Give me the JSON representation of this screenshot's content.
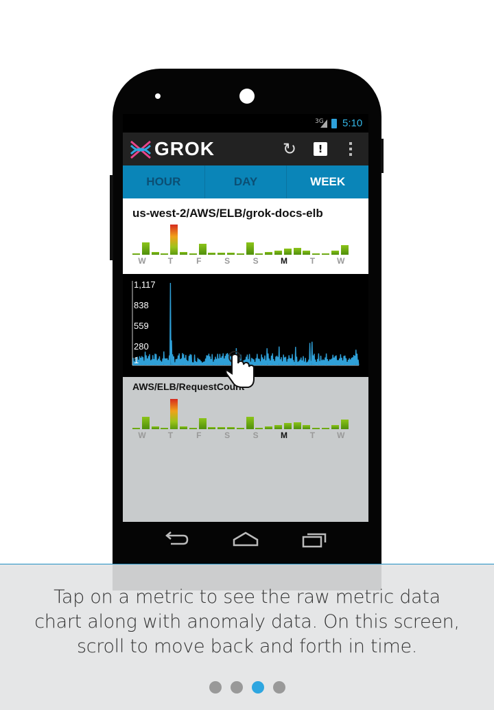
{
  "statusbar": {
    "network": "3G",
    "time": "5:10"
  },
  "app": {
    "logo_text": "GROK"
  },
  "actions": {
    "refresh_icon": "refresh-icon",
    "alert_label": "!",
    "overflow_icon": "overflow-icon"
  },
  "tabs": [
    {
      "label": "HOUR",
      "active": false
    },
    {
      "label": "DAY",
      "active": false
    },
    {
      "label": "WEEK",
      "active": true
    }
  ],
  "metric_card": {
    "title": "us-west-2/AWS/ELB/grok-docs-elb",
    "day_labels": [
      "W",
      "T",
      "F",
      "S",
      "S",
      "M",
      "T",
      "W"
    ],
    "today_index": 5
  },
  "raw_chart": {
    "y_labels": [
      "1,117",
      "838",
      "559",
      "280",
      "1"
    ]
  },
  "metric_card_2": {
    "title": "AWS/ELB/RequestCount",
    "day_labels": [
      "W",
      "T",
      "F",
      "S",
      "S",
      "M",
      "T",
      "W"
    ],
    "today_index": 5
  },
  "caption": "Tap on a metric to see the raw metric data chart along with anomaly data. On this screen, scroll to move back and forth in time.",
  "pager": {
    "total": 4,
    "active_index": 2
  },
  "colors": {
    "accent": "#33b5e5",
    "tab_bar": "#0a85b8",
    "line": "#2fa0d8"
  }
}
